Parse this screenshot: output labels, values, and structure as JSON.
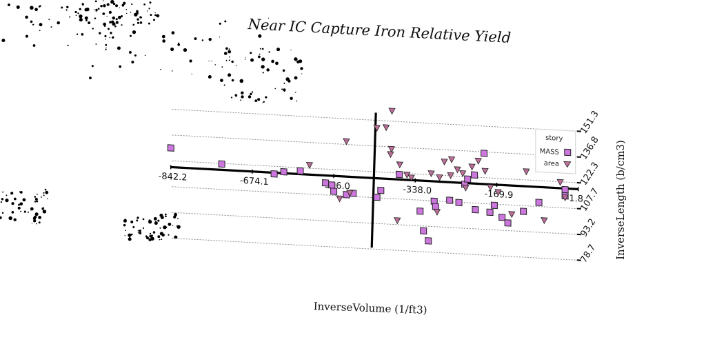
{
  "chart_data": {
    "type": "scatter",
    "title": "Near IC Capture Iron Relative Yield",
    "xlabel": "InverseVolume (1/ft3)",
    "ylabel": "InverseLength (b/cm3)",
    "xlim": [
      -842.2,
      -1.8
    ],
    "ylim": [
      78.7,
      151.3
    ],
    "x_ticks": [
      "-842.2",
      "-674.1",
      "-506.0",
      "-338.0",
      "-169.9",
      "-1.8"
    ],
    "y_ticks": [
      "78.7",
      "93.2",
      "107.7",
      "122.3",
      "136.8",
      "151.3"
    ],
    "grid": true,
    "legend": {
      "title": "story",
      "placement": "top-right"
    },
    "colors": {
      "MASS": "#cc77dd",
      "area": "#bb6f99"
    },
    "series": [
      {
        "name": "MASS",
        "marker": "square",
        "points": [
          [
            -842,
            129.5
          ],
          [
            -737,
            122.0
          ],
          [
            -629,
            118.0
          ],
          [
            -609,
            119.5
          ],
          [
            -575,
            120.5
          ],
          [
            -523,
            114.5
          ],
          [
            -510,
            113.5
          ],
          [
            -506,
            110.0
          ],
          [
            -480,
            108.5
          ],
          [
            -466,
            109.5
          ],
          [
            -409,
            112.0
          ],
          [
            -417,
            108.0
          ],
          [
            -371,
            121.5
          ],
          [
            -328,
            101.5
          ],
          [
            -321,
            90.5
          ],
          [
            -311,
            85.0
          ],
          [
            -299,
            107.5
          ],
          [
            -296,
            104.5
          ],
          [
            -267,
            108.5
          ],
          [
            -248,
            107.5
          ],
          [
            -236,
            118.0
          ],
          [
            -230,
            121.0
          ],
          [
            -214,
            104.0
          ],
          [
            -216,
            123.5
          ],
          [
            -196,
            136.0
          ],
          [
            -184,
            103.0
          ],
          [
            -175,
            107.0
          ],
          [
            -159,
            100.5
          ],
          [
            -147,
            97.5
          ],
          [
            -115,
            104.5
          ],
          [
            -83,
            110.0
          ],
          [
            -29,
            118.0
          ],
          [
            -29,
            114.5
          ]
        ]
      },
      {
        "name": "area",
        "marker": "triangle-down",
        "points": [
          [
            -480,
            138.5
          ],
          [
            -417,
            147.0
          ],
          [
            -386,
            157.0
          ],
          [
            -398,
            147.5
          ],
          [
            -387,
            135.5
          ],
          [
            -389,
            132.5
          ],
          [
            -556,
            124.0
          ],
          [
            -494,
            106.0
          ],
          [
            -473,
            109.5
          ],
          [
            -375,
            95.5
          ],
          [
            -370,
            127.0
          ],
          [
            -355,
            121.5
          ],
          [
            -346,
            120.0
          ],
          [
            -305,
            123.0
          ],
          [
            -288,
            121.0
          ],
          [
            -278,
            130.0
          ],
          [
            -265,
            122.5
          ],
          [
            -263,
            131.5
          ],
          [
            -251,
            126.0
          ],
          [
            -240,
            124.0
          ],
          [
            -234,
            116.0
          ],
          [
            -221,
            128.0
          ],
          [
            -208,
            131.5
          ],
          [
            -194,
            126.0
          ],
          [
            -183,
            117.0
          ],
          [
            -167,
            114.5
          ],
          [
            -139,
            102.5
          ],
          [
            -109,
            127.0
          ],
          [
            -72,
            100.0
          ],
          [
            -29,
            113.5
          ],
          [
            -39,
            122.0
          ],
          [
            -293,
            101.5
          ]
        ]
      }
    ]
  }
}
